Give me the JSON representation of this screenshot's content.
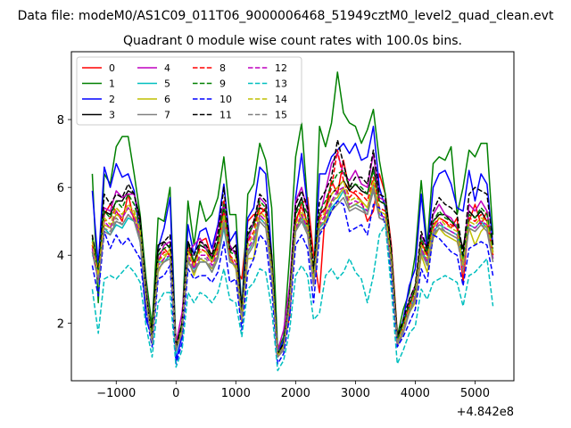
{
  "chart_data": {
    "type": "line",
    "suptitle": "Data file: modeM0/AS1C09_011T06_9000006468_51949cztM0_level2_quad_clean.evt",
    "title": "Quadrant 0 module wise count rates with 100.0s bins.",
    "xlabel": "",
    "ylabel": "",
    "x_offset_label": "+4.842e8",
    "xlim": [
      -1750,
      5650
    ],
    "ylim": [
      0.3,
      10.0
    ],
    "x_ticks": [
      -1000,
      0,
      1000,
      2000,
      3000,
      4000,
      5000
    ],
    "x_tick_labels": [
      "−1000",
      "0",
      "1000",
      "2000",
      "3000",
      "4000",
      "5000"
    ],
    "y_ticks": [
      2,
      4,
      6,
      8
    ],
    "y_tick_labels": [
      "2",
      "4",
      "6",
      "8"
    ],
    "grid": false,
    "legend_position": "upper-left",
    "legend_columns": 4,
    "x": [
      -1400,
      -1300,
      -1200,
      -1100,
      -1000,
      -900,
      -800,
      -700,
      -600,
      -500,
      -400,
      -300,
      -200,
      -100,
      0,
      100,
      200,
      300,
      400,
      500,
      600,
      700,
      800,
      900,
      1000,
      1100,
      1200,
      1300,
      1400,
      1500,
      1600,
      1700,
      1800,
      1900,
      2000,
      2100,
      2200,
      2300,
      2400,
      2500,
      2600,
      2700,
      2800,
      2900,
      3000,
      3100,
      3200,
      3300,
      3400,
      3500,
      3600,
      3700,
      3800,
      3900,
      4000,
      4100,
      4200,
      4300,
      4400,
      4500,
      4600,
      4700,
      4800,
      4900,
      5000,
      5100,
      5200,
      5300
    ],
    "series": [
      {
        "name": "0",
        "color": "#ff0000",
        "dash": "solid",
        "values": [
          4.3,
          3.4,
          5.2,
          5.5,
          5.3,
          5.0,
          5.8,
          5.0,
          4.6,
          2.8,
          1.6,
          4.0,
          4.2,
          4.0,
          1.4,
          1.9,
          4.4,
          3.6,
          4.4,
          4.5,
          3.9,
          4.3,
          5.6,
          4.0,
          3.6,
          3.3,
          5.0,
          5.2,
          5.2,
          5.4,
          3.6,
          1.1,
          1.4,
          2.2,
          5.0,
          5.5,
          5.7,
          4.0,
          2.9,
          5.4,
          6.2,
          5.8,
          6.8,
          5.9,
          5.8,
          5.6,
          5.0,
          5.3,
          6.4,
          5.8,
          4.3,
          1.7,
          2.0,
          2.4,
          2.7,
          4.0,
          4.2,
          4.8,
          5.1,
          5.0,
          4.8,
          5.1,
          3.2,
          5.0,
          5.5,
          4.9,
          5.3,
          4.0
        ]
      },
      {
        "name": "1",
        "color": "#008000",
        "dash": "solid",
        "values": [
          6.4,
          2.6,
          6.4,
          6.1,
          7.2,
          7.5,
          7.5,
          6.4,
          5.2,
          3.3,
          1.9,
          5.1,
          5.0,
          6.0,
          1.3,
          2.0,
          5.6,
          4.3,
          5.6,
          5.0,
          5.2,
          5.7,
          6.9,
          5.2,
          5.2,
          2.4,
          5.8,
          6.1,
          7.3,
          6.8,
          5.4,
          1.2,
          1.6,
          4.0,
          6.9,
          7.9,
          5.5,
          3.2,
          7.8,
          7.2,
          7.9,
          9.4,
          8.2,
          7.9,
          7.8,
          7.3,
          7.7,
          8.3,
          6.8,
          5.8,
          4.1,
          1.6,
          2.4,
          2.9,
          4.0,
          6.2,
          4.3,
          6.7,
          6.9,
          6.8,
          7.2,
          5.2,
          6.0,
          7.1,
          6.9,
          7.3,
          7.3,
          4.6
        ]
      },
      {
        "name": "2",
        "color": "#0000ff",
        "dash": "solid",
        "values": [
          5.9,
          3.7,
          6.6,
          6.0,
          6.7,
          6.3,
          6.4,
          5.9,
          4.5,
          2.1,
          1.6,
          4.2,
          4.8,
          5.7,
          0.9,
          1.6,
          4.9,
          4.0,
          4.7,
          4.8,
          4.2,
          4.9,
          6.1,
          4.4,
          4.7,
          2.4,
          5.1,
          5.4,
          6.6,
          6.4,
          4.0,
          1.1,
          1.5,
          2.4,
          5.7,
          7.0,
          5.4,
          3.3,
          6.4,
          6.4,
          6.9,
          7.1,
          7.3,
          7.0,
          7.3,
          6.8,
          6.9,
          7.8,
          6.0,
          5.4,
          4.0,
          1.5,
          2.1,
          3.1,
          3.6,
          5.8,
          4.1,
          6.0,
          6.4,
          6.5,
          6.1,
          5.4,
          5.3,
          6.5,
          5.6,
          6.4,
          6.1,
          4.3
        ]
      },
      {
        "name": "3",
        "color": "#000000",
        "dash": "solid",
        "values": [
          4.1,
          3.3,
          5.3,
          5.2,
          5.6,
          5.6,
          5.9,
          5.8,
          5.1,
          2.5,
          1.8,
          4.3,
          4.4,
          4.2,
          1.2,
          1.7,
          4.4,
          3.8,
          4.3,
          4.2,
          3.9,
          4.4,
          5.4,
          4.1,
          4.3,
          2.4,
          4.6,
          4.9,
          5.4,
          5.3,
          4.0,
          1.1,
          1.3,
          2.7,
          5.3,
          5.7,
          4.8,
          3.4,
          5.2,
          5.4,
          5.8,
          6.0,
          6.2,
          5.9,
          6.1,
          5.9,
          5.8,
          6.6,
          5.6,
          5.5,
          4.0,
          1.5,
          2.0,
          2.5,
          3.0,
          4.4,
          4.0,
          5.0,
          5.2,
          5.2,
          5.0,
          4.8,
          4.2,
          5.3,
          5.1,
          5.3,
          5.0,
          4.1
        ]
      },
      {
        "name": "4",
        "color": "#bf00bf",
        "dash": "solid",
        "values": [
          4.4,
          3.5,
          5.4,
          5.3,
          5.9,
          5.7,
          5.8,
          5.8,
          4.9,
          3.0,
          1.5,
          3.8,
          4.3,
          4.4,
          1.4,
          2.3,
          4.1,
          4.3,
          4.5,
          4.2,
          4.0,
          4.8,
          5.5,
          4.3,
          4.0,
          2.2,
          4.4,
          5.0,
          5.7,
          5.5,
          3.4,
          1.2,
          1.8,
          3.1,
          5.6,
          6.0,
          5.3,
          3.1,
          5.1,
          5.9,
          6.7,
          7.0,
          6.4,
          6.2,
          6.5,
          6.1,
          6.0,
          7.0,
          5.7,
          5.6,
          4.1,
          1.4,
          1.8,
          2.7,
          3.1,
          4.6,
          4.2,
          5.2,
          5.5,
          5.2,
          5.1,
          4.8,
          3.8,
          5.5,
          5.3,
          5.6,
          5.3,
          3.9
        ]
      },
      {
        "name": "5",
        "color": "#00bfbf",
        "dash": "solid",
        "values": [
          4.0,
          3.7,
          4.8,
          4.6,
          4.9,
          4.8,
          5.1,
          5.0,
          4.4,
          2.8,
          1.4,
          3.8,
          3.8,
          4.0,
          1.1,
          1.8,
          3.8,
          3.6,
          3.8,
          3.8,
          3.5,
          3.9,
          4.8,
          3.8,
          3.7,
          2.1,
          4.1,
          4.4,
          5.1,
          4.9,
          3.5,
          1.0,
          1.3,
          2.6,
          4.8,
          5.1,
          4.7,
          3.2,
          4.8,
          5.0,
          5.4,
          5.6,
          5.9,
          5.4,
          5.5,
          5.4,
          5.3,
          6.0,
          5.2,
          5.1,
          3.8,
          1.4,
          1.8,
          2.4,
          2.8,
          4.2,
          3.8,
          4.7,
          4.9,
          4.8,
          4.7,
          4.6,
          3.9,
          4.9,
          4.8,
          5.0,
          4.8,
          3.9
        ]
      },
      {
        "name": "6",
        "color": "#bfbf00",
        "dash": "solid",
        "values": [
          4.6,
          3.4,
          4.9,
          4.8,
          5.2,
          5.1,
          5.4,
          5.2,
          4.6,
          2.6,
          1.5,
          3.5,
          3.9,
          4.2,
          1.3,
          1.8,
          3.9,
          3.4,
          3.9,
          3.8,
          3.6,
          4.0,
          5.0,
          3.9,
          3.6,
          2.0,
          3.9,
          3.9,
          5.2,
          5.0,
          3.5,
          1.1,
          1.3,
          2.5,
          4.7,
          5.2,
          4.8,
          3.2,
          4.9,
          5.0,
          5.6,
          5.7,
          6.0,
          5.4,
          5.5,
          5.6,
          5.4,
          6.2,
          5.3,
          5.2,
          3.6,
          1.4,
          1.8,
          2.3,
          2.6,
          4.0,
          3.5,
          4.5,
          4.8,
          4.6,
          4.5,
          4.4,
          3.8,
          4.8,
          4.3,
          4.7,
          4.9,
          4.1
        ]
      },
      {
        "name": "7",
        "color": "#808080",
        "dash": "solid",
        "values": [
          4.2,
          3.3,
          4.7,
          4.6,
          5.0,
          4.9,
          5.2,
          5.0,
          4.4,
          2.6,
          1.4,
          3.6,
          3.8,
          3.9,
          1.2,
          1.7,
          3.8,
          3.5,
          3.8,
          3.8,
          3.5,
          3.9,
          4.9,
          3.8,
          3.7,
          2.1,
          4.0,
          4.3,
          5.0,
          4.8,
          3.4,
          1.0,
          1.2,
          2.5,
          4.7,
          5.0,
          4.6,
          3.1,
          4.7,
          4.9,
          5.3,
          5.5,
          5.7,
          5.3,
          5.4,
          5.3,
          5.2,
          5.9,
          5.1,
          5.0,
          3.7,
          1.3,
          1.7,
          2.3,
          2.7,
          4.1,
          3.7,
          4.6,
          4.8,
          4.7,
          4.6,
          4.5,
          3.7,
          4.8,
          4.7,
          4.9,
          4.7,
          3.8
        ]
      },
      {
        "name": "8",
        "color": "#ff0000",
        "dash": "dashed",
        "values": [
          4.3,
          3.6,
          5.0,
          5.1,
          5.4,
          5.2,
          5.5,
          5.3,
          4.7,
          2.7,
          1.5,
          3.8,
          4.1,
          4.0,
          1.3,
          1.8,
          4.2,
          3.7,
          4.2,
          4.1,
          3.8,
          4.2,
          5.3,
          4.0,
          3.8,
          2.2,
          4.4,
          4.7,
          5.5,
          5.2,
          3.6,
          1.0,
          1.3,
          2.6,
          5.0,
          5.4,
          5.0,
          3.3,
          5.1,
          5.4,
          6.0,
          7.1,
          6.2,
          5.7,
          5.9,
          5.8,
          5.6,
          6.3,
          5.4,
          5.3,
          3.9,
          1.5,
          1.9,
          2.5,
          2.9,
          4.4,
          4.0,
          4.9,
          5.1,
          5.0,
          4.9,
          4.8,
          3.6,
          5.1,
          5.0,
          5.2,
          5.0,
          4.0
        ]
      },
      {
        "name": "9",
        "color": "#008000",
        "dash": "dashed",
        "values": [
          4.5,
          3.5,
          5.3,
          5.1,
          5.6,
          5.4,
          5.8,
          5.5,
          4.9,
          2.8,
          1.6,
          4.0,
          4.2,
          4.3,
          1.3,
          1.9,
          4.3,
          3.8,
          4.3,
          4.3,
          3.9,
          4.4,
          5.5,
          4.1,
          4.0,
          2.3,
          4.6,
          4.9,
          5.6,
          5.4,
          3.7,
          1.1,
          1.4,
          2.8,
          5.2,
          5.6,
          5.2,
          3.4,
          5.3,
          5.6,
          6.1,
          6.4,
          6.5,
          6.0,
          6.1,
          6.0,
          5.8,
          6.5,
          5.6,
          5.5,
          4.0,
          1.5,
          2.0,
          2.6,
          3.0,
          4.5,
          4.1,
          5.0,
          5.3,
          5.1,
          5.0,
          4.9,
          3.9,
          5.2,
          5.1,
          5.4,
          5.2,
          4.2
        ]
      },
      {
        "name": "10",
        "color": "#0000ff",
        "dash": "dashed",
        "values": [
          3.7,
          2.8,
          4.7,
          4.2,
          4.6,
          4.3,
          4.5,
          4.2,
          3.9,
          2.3,
          1.3,
          3.3,
          3.4,
          3.7,
          0.8,
          1.4,
          3.6,
          3.3,
          3.4,
          3.4,
          3.2,
          3.5,
          4.4,
          3.2,
          3.3,
          1.8,
          3.5,
          3.9,
          4.6,
          4.4,
          3.0,
          0.8,
          1.1,
          2.2,
          4.3,
          4.6,
          4.2,
          2.6,
          4.6,
          4.9,
          5.3,
          5.6,
          5.5,
          4.7,
          4.8,
          4.9,
          4.6,
          5.5,
          5.4,
          4.9,
          3.4,
          1.3,
          1.6,
          2.0,
          2.4,
          3.6,
          3.2,
          4.6,
          4.5,
          4.3,
          4.1,
          4.0,
          3.1,
          4.2,
          4.3,
          4.4,
          4.3,
          3.4
        ]
      },
      {
        "name": "11",
        "color": "#000000",
        "dash": "dashed",
        "values": [
          4.6,
          3.5,
          5.8,
          5.5,
          5.8,
          5.7,
          6.1,
          5.8,
          5.0,
          2.9,
          1.6,
          4.1,
          4.4,
          4.6,
          1.3,
          2.0,
          4.4,
          4.0,
          4.4,
          4.3,
          4.0,
          4.6,
          6.0,
          4.2,
          4.1,
          2.3,
          4.7,
          5.0,
          5.8,
          5.6,
          3.8,
          1.1,
          1.4,
          2.8,
          5.5,
          5.9,
          5.4,
          3.6,
          5.6,
          5.9,
          6.3,
          7.4,
          6.7,
          6.0,
          6.3,
          6.3,
          6.1,
          7.1,
          5.8,
          5.7,
          4.2,
          1.6,
          2.1,
          2.7,
          3.1,
          4.7,
          4.2,
          5.3,
          5.7,
          5.5,
          5.4,
          5.2,
          4.0,
          5.8,
          6.0,
          5.9,
          5.8,
          4.3
        ]
      },
      {
        "name": "12",
        "color": "#bf00bf",
        "dash": "dashed",
        "values": [
          4.2,
          3.3,
          5.0,
          4.8,
          5.3,
          5.1,
          5.4,
          5.1,
          4.6,
          2.7,
          1.4,
          3.7,
          3.9,
          4.0,
          1.2,
          1.7,
          4.0,
          3.6,
          4.0,
          4.0,
          3.7,
          4.1,
          5.1,
          3.9,
          3.8,
          2.1,
          4.2,
          4.5,
          5.2,
          5.0,
          3.5,
          1.0,
          1.3,
          2.5,
          4.8,
          5.2,
          4.8,
          3.2,
          4.9,
          5.2,
          5.6,
          5.9,
          6.0,
          5.5,
          5.6,
          5.5,
          5.3,
          6.1,
          5.2,
          5.1,
          3.8,
          1.4,
          1.8,
          2.4,
          2.8,
          4.2,
          3.8,
          4.7,
          5.0,
          4.8,
          4.7,
          4.6,
          3.6,
          4.9,
          4.8,
          5.0,
          4.9,
          3.9
        ]
      },
      {
        "name": "13",
        "color": "#00bfbf",
        "dash": "dashed",
        "values": [
          3.0,
          1.7,
          3.3,
          3.4,
          3.3,
          3.5,
          3.7,
          3.5,
          3.2,
          1.9,
          1.0,
          2.6,
          2.9,
          2.9,
          0.7,
          1.2,
          2.9,
          2.6,
          2.9,
          2.8,
          2.6,
          2.9,
          3.6,
          2.7,
          2.6,
          1.6,
          3.0,
          3.2,
          3.6,
          3.5,
          2.4,
          0.6,
          0.9,
          1.8,
          3.4,
          3.7,
          3.4,
          2.1,
          2.3,
          3.4,
          3.6,
          3.3,
          3.5,
          3.9,
          3.5,
          3.3,
          2.6,
          3.4,
          4.6,
          4.9,
          3.0,
          0.8,
          1.2,
          1.7,
          1.9,
          3.0,
          2.7,
          3.2,
          3.3,
          3.4,
          3.3,
          3.2,
          2.5,
          3.4,
          3.5,
          3.7,
          3.9,
          2.5
        ]
      },
      {
        "name": "14",
        "color": "#bfbf00",
        "dash": "dashed",
        "values": [
          4.4,
          3.4,
          5.1,
          4.9,
          5.4,
          5.2,
          5.5,
          5.3,
          4.7,
          2.7,
          1.5,
          3.8,
          4.0,
          4.1,
          1.2,
          1.8,
          4.1,
          3.7,
          4.1,
          4.1,
          3.8,
          4.2,
          5.2,
          3.9,
          3.9,
          2.1,
          4.3,
          4.6,
          5.3,
          5.1,
          3.6,
          1.0,
          1.3,
          2.6,
          4.9,
          5.3,
          4.9,
          3.3,
          5.0,
          5.3,
          5.8,
          6.0,
          6.2,
          5.6,
          5.7,
          5.6,
          5.4,
          6.2,
          5.3,
          5.2,
          3.9,
          1.4,
          1.9,
          2.4,
          2.9,
          4.3,
          3.9,
          4.8,
          5.1,
          4.9,
          4.8,
          4.7,
          3.7,
          5.0,
          4.9,
          5.1,
          5.0,
          4.0
        ]
      },
      {
        "name": "15",
        "color": "#808080",
        "dash": "dashed",
        "values": [
          4.1,
          3.2,
          4.8,
          4.7,
          5.1,
          4.9,
          5.2,
          5.0,
          4.5,
          2.6,
          1.4,
          3.6,
          3.8,
          3.9,
          1.2,
          1.7,
          3.9,
          3.5,
          3.9,
          3.9,
          3.6,
          4.0,
          5.0,
          3.8,
          3.7,
          2.1,
          4.1,
          4.4,
          5.1,
          4.9,
          3.4,
          1.0,
          1.3,
          2.5,
          4.7,
          5.1,
          4.7,
          3.1,
          4.8,
          5.1,
          5.5,
          5.8,
          5.9,
          5.4,
          5.5,
          5.4,
          5.2,
          6.0,
          5.1,
          5.0,
          3.7,
          1.4,
          1.8,
          2.3,
          2.7,
          4.1,
          3.7,
          4.6,
          4.9,
          4.7,
          4.6,
          4.5,
          3.5,
          4.8,
          4.7,
          4.9,
          4.8,
          3.8
        ]
      }
    ]
  }
}
